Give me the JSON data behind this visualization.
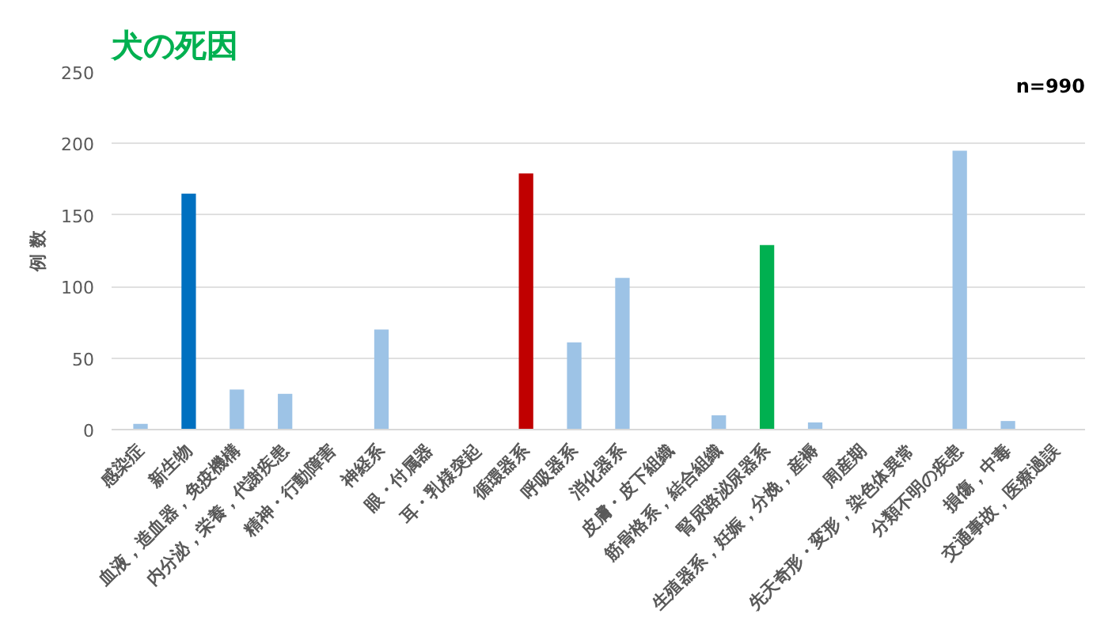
{
  "chart_data": {
    "type": "bar",
    "title": "犬の死因",
    "ylabel": "例 数",
    "annotations": [
      "n=990"
    ],
    "categories": [
      "感染症",
      "新生物",
      "血液，造血器，免疫機構",
      "内分泌，栄養，代謝疾患",
      "精神・行動障害",
      "神経系",
      "眼・付属器",
      "耳・乳様突起",
      "循環器系",
      "呼吸器系",
      "消化器系",
      "皮膚・皮下組織",
      "筋骨格系，結合組織",
      "腎尿路泌尿器系",
      "生殖器系，妊娠，分娩，産褥",
      "周産期",
      "先天奇形・変形，染色体異常",
      "分類不明の疾患",
      "損傷，中毒",
      "交通事故，医療過誤"
    ],
    "values": [
      4,
      165,
      28,
      25,
      0,
      70,
      0,
      0,
      179,
      61,
      106,
      0,
      10,
      129,
      5,
      0,
      0,
      195,
      6,
      0
    ],
    "colors": [
      "#9dc3e6",
      "#0070c0",
      "#9dc3e6",
      "#9dc3e6",
      "#9dc3e6",
      "#9dc3e6",
      "#9dc3e6",
      "#9dc3e6",
      "#c00000",
      "#9dc3e6",
      "#9dc3e6",
      "#9dc3e6",
      "#9dc3e6",
      "#00b050",
      "#9dc3e6",
      "#9dc3e6",
      "#9dc3e6",
      "#9dc3e6",
      "#9dc3e6",
      "#9dc3e6"
    ],
    "ylim": [
      0,
      250
    ],
    "yticks": [
      0,
      50,
      100,
      150,
      200,
      250
    ],
    "grid": "y"
  }
}
